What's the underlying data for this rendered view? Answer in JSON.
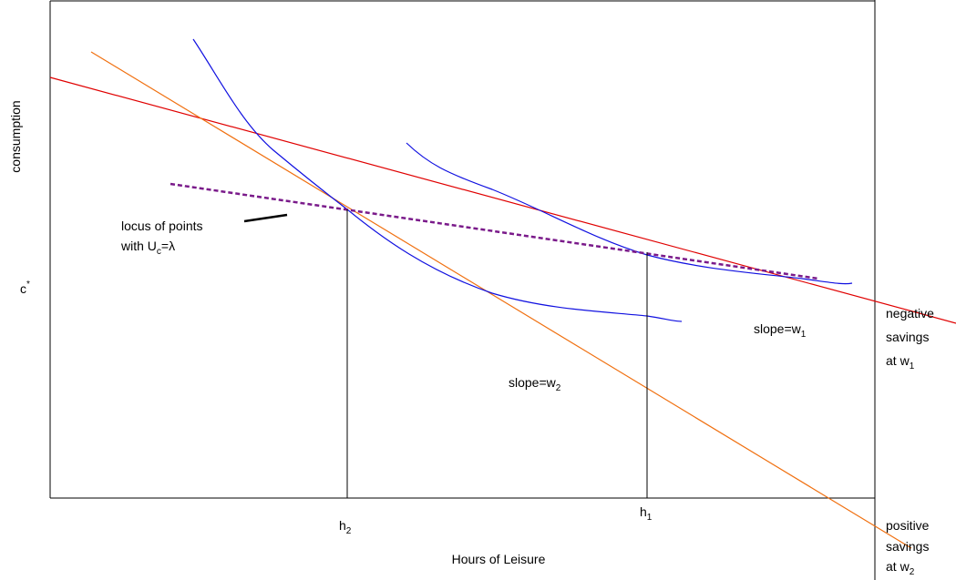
{
  "axes": {
    "y_label": "consumption",
    "y_marker": {
      "text": "c",
      "sup": "*"
    },
    "x_label": "Hours of Leisure"
  },
  "ticks": {
    "h2": {
      "text": "h",
      "sub": "2"
    },
    "h1": {
      "text": "h",
      "sub": "1"
    }
  },
  "annotations": {
    "locus": {
      "line1": "locus of points",
      "line2": {
        "text": "with U",
        "sub": "c",
        "rest": "=λ"
      }
    },
    "slope_w1": {
      "text": "slope=w",
      "sub": "1"
    },
    "slope_w2": {
      "text": "slope=w",
      "sub": "2"
    },
    "negative": {
      "line1": "negative",
      "line2": "savings",
      "line3": {
        "text": "at w",
        "sub": "1"
      }
    },
    "positive": {
      "line1": "positive",
      "line2": "savings",
      "line3": {
        "text": "at w",
        "sub": "2"
      }
    }
  }
}
